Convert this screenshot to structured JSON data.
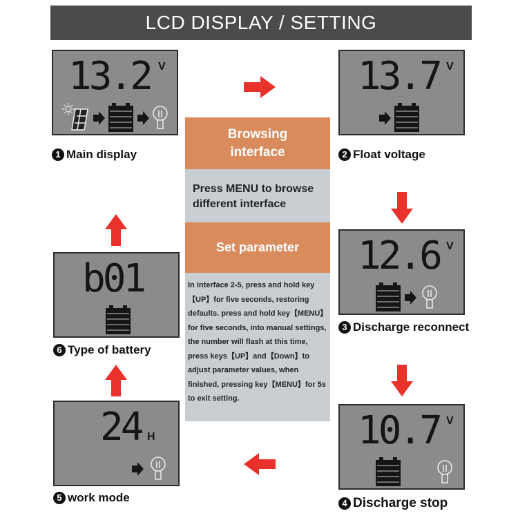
{
  "title": "LCD DISPLAY / SETTING",
  "center": {
    "browsing_header": "Browsing interface",
    "browsing_text": "Press MENU to browse different interface",
    "set_header": "Set parameter",
    "set_text": "In interface 2-5, press and hold key【UP】for five seconds, restoring defaults. press and hold key【MENU】for five seconds, into manual settings, the number will flash at this time, press keys【UP】and【Down】to adjust parameter values, when finished, pressing key【MENU】for 5s to exit setting."
  },
  "panels": [
    {
      "number": "1",
      "label": "Main display",
      "value": "13.2",
      "unit": "V",
      "icons": [
        "sun-icon",
        "solar-panel-icon",
        "arrow-icon",
        "battery-icon",
        "arrow-icon",
        "bulb-icon"
      ]
    },
    {
      "number": "2",
      "label": "Float voltage",
      "value": "13.7",
      "unit": "V",
      "icons": [
        "arrow-icon",
        "battery-icon"
      ]
    },
    {
      "number": "3",
      "label": "Discharge reconnect",
      "value": "12.6",
      "unit": "V",
      "icons": [
        "battery-icon",
        "arrow-icon",
        "bulb-icon"
      ]
    },
    {
      "number": "4",
      "label": "Discharge stop",
      "value": "10.7",
      "unit": "V",
      "icons": [
        "battery-icon",
        "bulb-icon"
      ]
    },
    {
      "number": "5",
      "label": "work mode",
      "value": "24",
      "unit": "H",
      "icons": [
        "arrow-icon",
        "bulb-icon"
      ]
    },
    {
      "number": "6",
      "label": "Type of battery",
      "value": "b01",
      "unit": "",
      "icons": [
        "battery-icon"
      ]
    }
  ],
  "colors": {
    "title_bg": "#4b4b4b",
    "lcd_bg": "#8b8b8b",
    "orange": "#d98b5c",
    "panel_gray": "#c8ced1",
    "arrow_red": "#e8322b"
  }
}
